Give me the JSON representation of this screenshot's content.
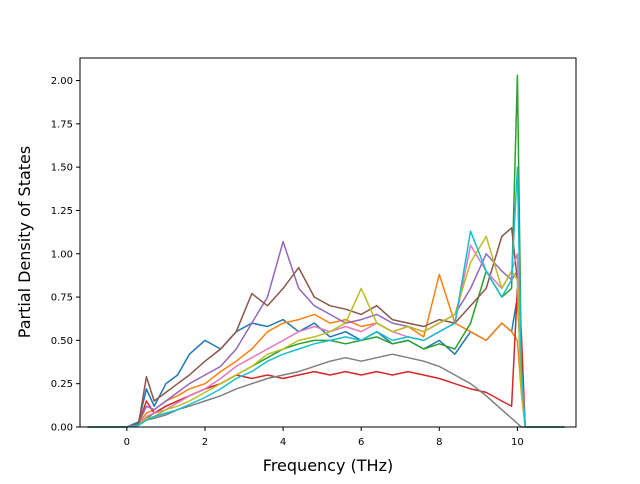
{
  "chart_data": {
    "type": "line",
    "title": "",
    "xlabel": "Frequency (THz)",
    "ylabel": "Partial Density of States",
    "xlim": [
      -1.2,
      11.5
    ],
    "ylim": [
      0.0,
      2.13
    ],
    "xticks": [
      0,
      2,
      4,
      6,
      8,
      10
    ],
    "xtick_labels": [
      "0",
      "2",
      "4",
      "6",
      "8",
      "10"
    ],
    "yticks": [
      0.0,
      0.25,
      0.5,
      0.75,
      1.0,
      1.25,
      1.5,
      1.75,
      2.0
    ],
    "ytick_labels": [
      "0.00",
      "0.25",
      "0.50",
      "0.75",
      "1.00",
      "1.25",
      "1.50",
      "1.75",
      "2.00"
    ],
    "grid": false,
    "legend": "none",
    "palette": [
      "#1f77b4",
      "#ff7f0e",
      "#2ca02c",
      "#d62728",
      "#9467bd",
      "#8c564b",
      "#e377c2",
      "#7f7f7f",
      "#bcbd22",
      "#17becf"
    ],
    "x": [
      -1.0,
      -0.5,
      0.0,
      0.3,
      0.5,
      0.7,
      1.0,
      1.3,
      1.6,
      2.0,
      2.4,
      2.8,
      3.2,
      3.6,
      4.0,
      4.4,
      4.8,
      5.2,
      5.6,
      6.0,
      6.4,
      6.8,
      7.2,
      7.6,
      8.0,
      8.4,
      8.8,
      9.2,
      9.6,
      9.85,
      10.0,
      10.1,
      10.2,
      10.3,
      11.2
    ],
    "series": [
      {
        "values": [
          0,
          0,
          0,
          0.03,
          0.22,
          0.12,
          0.25,
          0.3,
          0.42,
          0.5,
          0.45,
          0.55,
          0.6,
          0.58,
          0.62,
          0.55,
          0.6,
          0.52,
          0.55,
          0.5,
          0.55,
          0.48,
          0.5,
          0.45,
          0.5,
          0.42,
          0.55,
          0.5,
          0.6,
          0.55,
          0.75,
          0.3,
          0,
          0,
          0
        ]
      },
      {
        "values": [
          0,
          0,
          0,
          0.02,
          0.08,
          0.1,
          0.15,
          0.18,
          0.22,
          0.25,
          0.32,
          0.38,
          0.45,
          0.55,
          0.6,
          0.62,
          0.65,
          0.6,
          0.62,
          0.58,
          0.6,
          0.55,
          0.58,
          0.52,
          0.88,
          0.6,
          0.55,
          0.5,
          0.6,
          0.55,
          0.5,
          0.2,
          0,
          0,
          0
        ]
      },
      {
        "values": [
          0,
          0,
          0,
          0.01,
          0.05,
          0.08,
          0.12,
          0.15,
          0.18,
          0.22,
          0.25,
          0.3,
          0.35,
          0.4,
          0.45,
          0.48,
          0.5,
          0.5,
          0.48,
          0.5,
          0.52,
          0.48,
          0.5,
          0.45,
          0.48,
          0.45,
          0.6,
          0.9,
          0.75,
          0.8,
          2.03,
          0.4,
          0,
          0,
          0
        ]
      },
      {
        "values": [
          0,
          0,
          0,
          0.02,
          0.15,
          0.08,
          0.12,
          0.15,
          0.18,
          0.22,
          0.25,
          0.3,
          0.28,
          0.3,
          0.28,
          0.3,
          0.32,
          0.3,
          0.32,
          0.3,
          0.32,
          0.3,
          0.32,
          0.3,
          0.28,
          0.25,
          0.22,
          0.2,
          0.15,
          0.12,
          0.8,
          0.55,
          0,
          0,
          0
        ]
      },
      {
        "values": [
          0,
          0,
          0,
          0.02,
          0.12,
          0.1,
          0.15,
          0.2,
          0.25,
          0.3,
          0.35,
          0.45,
          0.6,
          0.75,
          1.07,
          0.8,
          0.7,
          0.65,
          0.6,
          0.62,
          0.65,
          0.6,
          0.58,
          0.55,
          0.6,
          0.65,
          0.8,
          1.0,
          0.9,
          0.85,
          0.9,
          0.3,
          0,
          0,
          0
        ]
      },
      {
        "values": [
          0,
          0,
          0,
          0.02,
          0.29,
          0.15,
          0.2,
          0.25,
          0.3,
          0.38,
          0.45,
          0.55,
          0.77,
          0.7,
          0.8,
          0.92,
          0.75,
          0.7,
          0.68,
          0.65,
          0.7,
          0.62,
          0.6,
          0.58,
          0.62,
          0.6,
          0.7,
          0.8,
          1.1,
          1.15,
          0.85,
          0.25,
          0,
          0,
          0
        ]
      },
      {
        "values": [
          0,
          0,
          0,
          0.01,
          0.06,
          0.08,
          0.1,
          0.14,
          0.18,
          0.22,
          0.28,
          0.35,
          0.4,
          0.45,
          0.5,
          0.55,
          0.58,
          0.55,
          0.58,
          0.55,
          0.6,
          0.55,
          0.52,
          0.5,
          0.55,
          0.6,
          1.05,
          0.9,
          0.8,
          0.9,
          1.0,
          0.3,
          0,
          0,
          0
        ]
      },
      {
        "values": [
          0,
          0,
          0,
          0.01,
          0.04,
          0.05,
          0.07,
          0.1,
          0.12,
          0.15,
          0.18,
          0.22,
          0.25,
          0.28,
          0.3,
          0.32,
          0.35,
          0.38,
          0.4,
          0.38,
          0.4,
          0.42,
          0.4,
          0.38,
          0.35,
          0.3,
          0.25,
          0.18,
          0.1,
          0.05,
          0.02,
          0.0,
          0,
          0,
          0
        ]
      },
      {
        "values": [
          0,
          0,
          0,
          0.01,
          0.05,
          0.06,
          0.1,
          0.12,
          0.15,
          0.2,
          0.25,
          0.3,
          0.35,
          0.42,
          0.45,
          0.5,
          0.52,
          0.55,
          0.6,
          0.8,
          0.6,
          0.55,
          0.58,
          0.55,
          0.6,
          0.65,
          0.95,
          1.1,
          0.8,
          0.9,
          0.85,
          0.2,
          0,
          0,
          0
        ]
      },
      {
        "values": [
          0,
          0,
          0,
          0.01,
          0.04,
          0.06,
          0.08,
          0.1,
          0.13,
          0.17,
          0.22,
          0.28,
          0.32,
          0.38,
          0.42,
          0.45,
          0.48,
          0.5,
          0.52,
          0.5,
          0.55,
          0.5,
          0.52,
          0.5,
          0.55,
          0.6,
          1.13,
          0.9,
          0.75,
          0.85,
          1.5,
          0.35,
          0,
          0,
          0
        ]
      }
    ]
  }
}
